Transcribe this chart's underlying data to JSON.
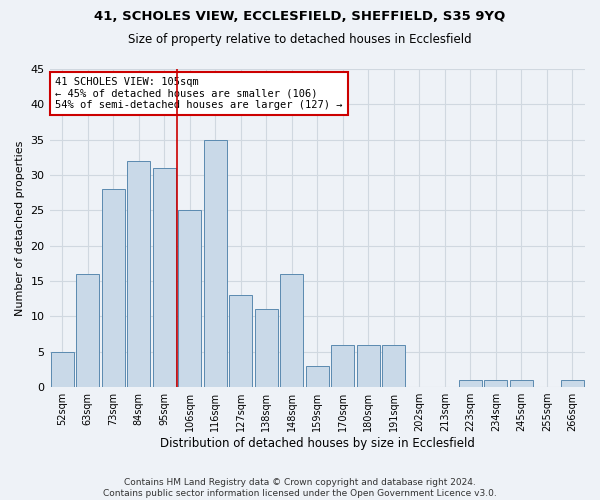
{
  "title": "41, SCHOLES VIEW, ECCLESFIELD, SHEFFIELD, S35 9YQ",
  "subtitle": "Size of property relative to detached houses in Ecclesfield",
  "xlabel": "Distribution of detached houses by size in Ecclesfield",
  "ylabel": "Number of detached properties",
  "footer_line1": "Contains HM Land Registry data © Crown copyright and database right 2024.",
  "footer_line2": "Contains public sector information licensed under the Open Government Licence v3.0.",
  "categories": [
    "52sqm",
    "63sqm",
    "73sqm",
    "84sqm",
    "95sqm",
    "106sqm",
    "116sqm",
    "127sqm",
    "138sqm",
    "148sqm",
    "159sqm",
    "170sqm",
    "180sqm",
    "191sqm",
    "202sqm",
    "213sqm",
    "223sqm",
    "234sqm",
    "245sqm",
    "255sqm",
    "266sqm"
  ],
  "values": [
    5,
    16,
    28,
    32,
    31,
    25,
    35,
    13,
    11,
    16,
    3,
    6,
    6,
    6,
    0,
    0,
    1,
    1,
    1,
    0,
    1
  ],
  "bar_color": "#c9d9e8",
  "bar_edge_color": "#5a8ab0",
  "grid_color": "#d0d8e0",
  "background_color": "#eef2f7",
  "red_line_index": 5,
  "red_line_color": "#cc0000",
  "annotation_line1": "41 SCHOLES VIEW: 105sqm",
  "annotation_line2": "← 45% of detached houses are smaller (106)",
  "annotation_line3": "54% of semi-detached houses are larger (127) →",
  "annotation_box_color": "#ffffff",
  "annotation_box_edge_color": "#cc0000",
  "ylim": [
    0,
    45
  ],
  "yticks": [
    0,
    5,
    10,
    15,
    20,
    25,
    30,
    35,
    40,
    45
  ]
}
